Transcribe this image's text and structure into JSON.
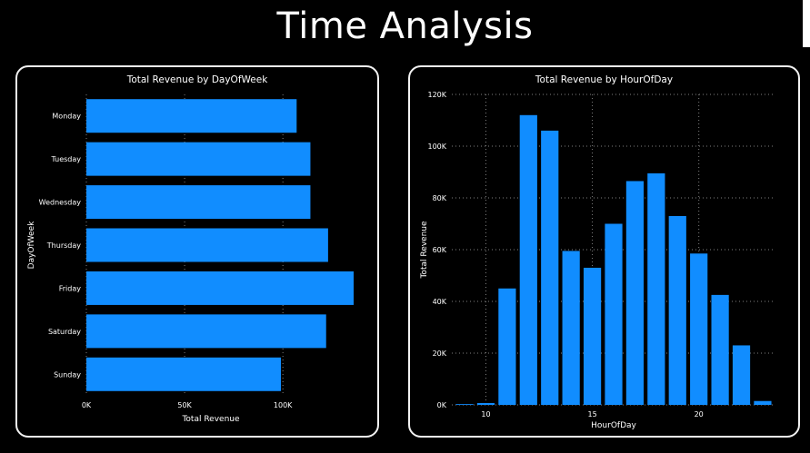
{
  "page": {
    "title": "Time Analysis"
  },
  "colors": {
    "bar": "#118DFF",
    "grid": "#7f7f7f",
    "background": "#000000",
    "text": "#ffffff"
  },
  "chart_data": [
    {
      "type": "bar",
      "orientation": "horizontal",
      "title": "Total Revenue by DayOfWeek",
      "xlabel": "Total Revenue",
      "ylabel": "DayOfWeek",
      "categories": [
        "Monday",
        "Tuesday",
        "Wednesday",
        "Thursday",
        "Friday",
        "Saturday",
        "Sunday"
      ],
      "values": [
        107000,
        114000,
        114000,
        123000,
        136000,
        122000,
        99000
      ],
      "xlim": [
        0,
        136000
      ],
      "xticks": [
        0,
        50000,
        100000
      ],
      "xtick_labels": [
        "0K",
        "50K",
        "100K"
      ],
      "grid": true
    },
    {
      "type": "bar",
      "orientation": "vertical",
      "title": "Total Revenue by HourOfDay",
      "xlabel": "HourOfDay",
      "ylabel": "Total Revenue",
      "x": [
        9,
        10,
        11,
        12,
        13,
        14,
        15,
        16,
        17,
        18,
        19,
        20,
        21,
        22,
        23
      ],
      "values": [
        300,
        700,
        45000,
        112000,
        106000,
        59500,
        53000,
        70000,
        86500,
        89500,
        73000,
        58500,
        42500,
        23000,
        1500
      ],
      "xlim": [
        8.4,
        23.6
      ],
      "ylim": [
        0,
        120000
      ],
      "xticks": [
        10,
        15,
        20
      ],
      "xtick_labels": [
        "10",
        "15",
        "20"
      ],
      "yticks": [
        0,
        20000,
        40000,
        60000,
        80000,
        100000,
        120000
      ],
      "ytick_labels": [
        "0K",
        "20K",
        "40K",
        "60K",
        "80K",
        "100K",
        "120K"
      ],
      "grid": true
    }
  ]
}
